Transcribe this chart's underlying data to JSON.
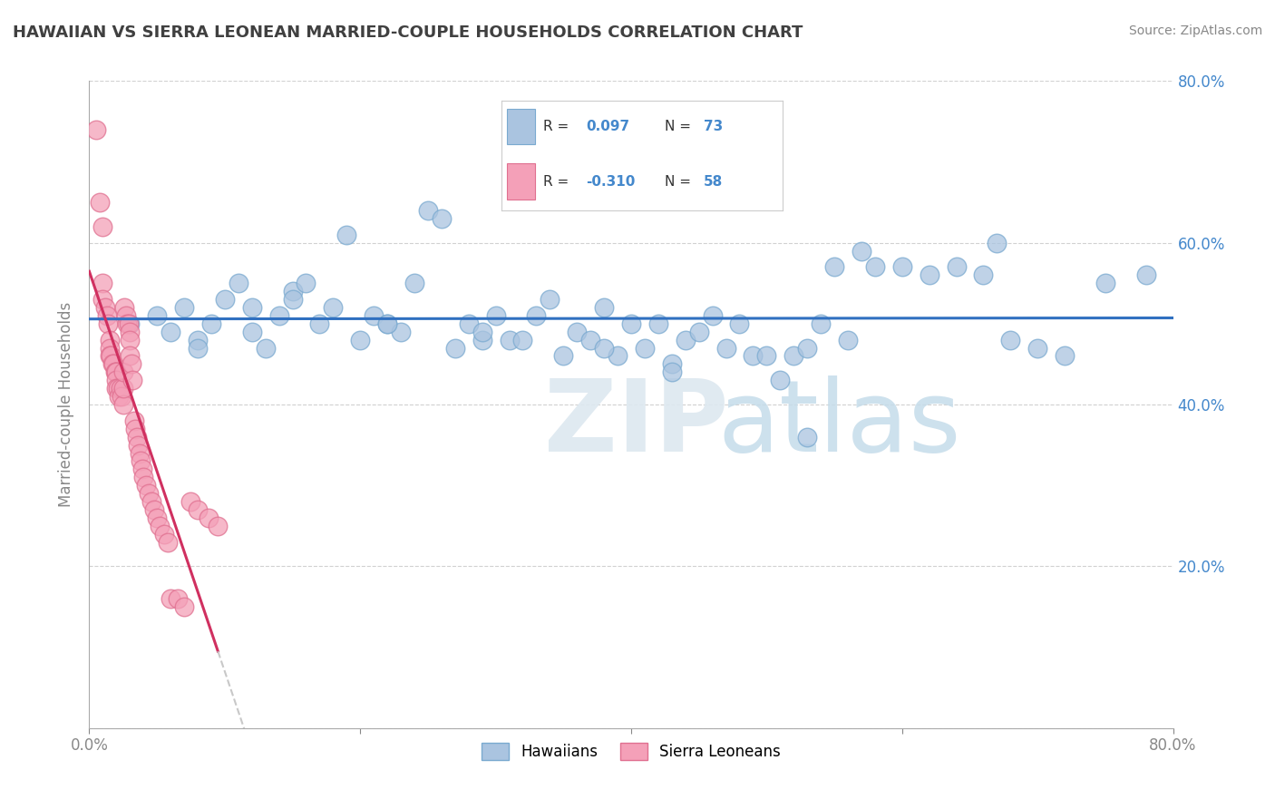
{
  "title": "HAWAIIAN VS SIERRA LEONEAN MARRIED-COUPLE HOUSEHOLDS CORRELATION CHART",
  "source": "Source: ZipAtlas.com",
  "ylabel": "Married-couple Households",
  "xlim": [
    0.0,
    0.8
  ],
  "ylim": [
    0.0,
    0.8
  ],
  "R_hawaiian": 0.097,
  "N_hawaiian": 73,
  "R_sierra": -0.31,
  "N_sierra": 58,
  "hawaiian_color": "#aac4e0",
  "hawaiian_edge": "#7aaad0",
  "sierra_color": "#f4a0b8",
  "sierra_edge": "#e07090",
  "trend_hawaiian_color": "#3070c0",
  "trend_sierra_color": "#d03060",
  "trend_sierra_ext_color": "#c8c8c8",
  "watermark_zip_color": "#dce8f0",
  "watermark_atlas_color": "#c8dce8",
  "legend_hawaiians": "Hawaiians",
  "legend_sierra": "Sierra Leoneans",
  "hawaiian_x": [
    0.03,
    0.05,
    0.06,
    0.07,
    0.08,
    0.09,
    0.1,
    0.11,
    0.12,
    0.12,
    0.13,
    0.14,
    0.15,
    0.16,
    0.17,
    0.18,
    0.19,
    0.2,
    0.21,
    0.22,
    0.23,
    0.24,
    0.25,
    0.26,
    0.27,
    0.28,
    0.29,
    0.3,
    0.31,
    0.32,
    0.33,
    0.34,
    0.35,
    0.36,
    0.37,
    0.38,
    0.39,
    0.4,
    0.41,
    0.42,
    0.43,
    0.44,
    0.45,
    0.46,
    0.47,
    0.48,
    0.49,
    0.5,
    0.51,
    0.52,
    0.53,
    0.54,
    0.55,
    0.56,
    0.57,
    0.58,
    0.6,
    0.62,
    0.64,
    0.66,
    0.68,
    0.7,
    0.72,
    0.75,
    0.78,
    0.67,
    0.53,
    0.43,
    0.38,
    0.29,
    0.22,
    0.15,
    0.08
  ],
  "hawaiian_y": [
    0.5,
    0.51,
    0.49,
    0.52,
    0.48,
    0.5,
    0.53,
    0.55,
    0.49,
    0.52,
    0.47,
    0.51,
    0.54,
    0.55,
    0.5,
    0.52,
    0.61,
    0.48,
    0.51,
    0.5,
    0.49,
    0.55,
    0.64,
    0.63,
    0.47,
    0.5,
    0.48,
    0.51,
    0.48,
    0.48,
    0.51,
    0.53,
    0.46,
    0.49,
    0.48,
    0.52,
    0.46,
    0.5,
    0.47,
    0.5,
    0.45,
    0.48,
    0.49,
    0.51,
    0.47,
    0.5,
    0.46,
    0.46,
    0.43,
    0.46,
    0.36,
    0.5,
    0.57,
    0.48,
    0.59,
    0.57,
    0.57,
    0.56,
    0.57,
    0.56,
    0.48,
    0.47,
    0.46,
    0.55,
    0.56,
    0.6,
    0.47,
    0.44,
    0.47,
    0.49,
    0.5,
    0.53,
    0.47
  ],
  "sierra_x": [
    0.005,
    0.008,
    0.01,
    0.01,
    0.01,
    0.012,
    0.013,
    0.014,
    0.015,
    0.015,
    0.015,
    0.016,
    0.017,
    0.018,
    0.019,
    0.02,
    0.02,
    0.02,
    0.02,
    0.021,
    0.022,
    0.023,
    0.024,
    0.025,
    0.025,
    0.025,
    0.026,
    0.027,
    0.028,
    0.029,
    0.03,
    0.03,
    0.03,
    0.031,
    0.032,
    0.033,
    0.034,
    0.035,
    0.036,
    0.037,
    0.038,
    0.039,
    0.04,
    0.042,
    0.044,
    0.046,
    0.048,
    0.05,
    0.052,
    0.055,
    0.058,
    0.06,
    0.065,
    0.07,
    0.075,
    0.08,
    0.088,
    0.095
  ],
  "sierra_y": [
    0.74,
    0.65,
    0.62,
    0.55,
    0.53,
    0.52,
    0.51,
    0.5,
    0.48,
    0.47,
    0.46,
    0.46,
    0.45,
    0.45,
    0.44,
    0.44,
    0.44,
    0.43,
    0.42,
    0.42,
    0.41,
    0.42,
    0.41,
    0.4,
    0.42,
    0.44,
    0.52,
    0.51,
    0.5,
    0.5,
    0.49,
    0.48,
    0.46,
    0.45,
    0.43,
    0.38,
    0.37,
    0.36,
    0.35,
    0.34,
    0.33,
    0.32,
    0.31,
    0.3,
    0.29,
    0.28,
    0.27,
    0.26,
    0.25,
    0.24,
    0.23,
    0.16,
    0.16,
    0.15,
    0.28,
    0.27,
    0.26,
    0.25
  ],
  "background_color": "#ffffff",
  "grid_color": "#cccccc",
  "title_color": "#404040",
  "axis_color": "#888888",
  "tick_label_color": "#4488cc"
}
